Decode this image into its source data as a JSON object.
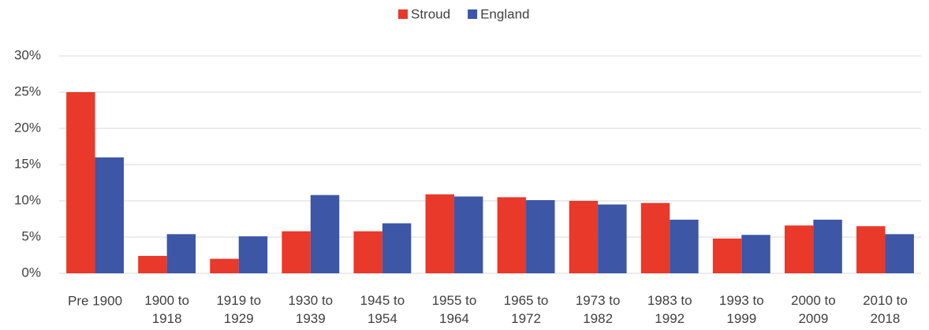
{
  "chart_data": {
    "type": "bar",
    "categories": [
      "Pre 1900",
      "1900 to 1918",
      "1919 to 1929",
      "1930 to 1939",
      "1945 to 1954",
      "1955 to 1964",
      "1965 to 1972",
      "1973 to 1982",
      "1983 to 1992",
      "1993 to 1999",
      "2000 to 2009",
      "2010 to 2018"
    ],
    "series": [
      {
        "name": "Stroud",
        "color": "#e8392a",
        "values": [
          25,
          2.4,
          2.0,
          5.8,
          5.8,
          10.9,
          10.5,
          10.0,
          9.7,
          4.8,
          6.6,
          6.5
        ]
      },
      {
        "name": "England",
        "color": "#3d56a6",
        "values": [
          16.0,
          5.4,
          5.1,
          10.8,
          6.9,
          10.6,
          10.1,
          9.5,
          7.4,
          5.3,
          7.4,
          5.4
        ]
      }
    ],
    "ylim": [
      0,
      30
    ],
    "yticks": [
      {
        "value": 0,
        "label": "0%"
      },
      {
        "value": 5,
        "label": "5%"
      },
      {
        "value": 10,
        "label": "10%"
      },
      {
        "value": 15,
        "label": "15%"
      },
      {
        "value": 20,
        "label": "20%"
      },
      {
        "value": 25,
        "label": "25%"
      },
      {
        "value": 30,
        "label": "30%"
      }
    ],
    "grid": true,
    "legend": "top"
  }
}
